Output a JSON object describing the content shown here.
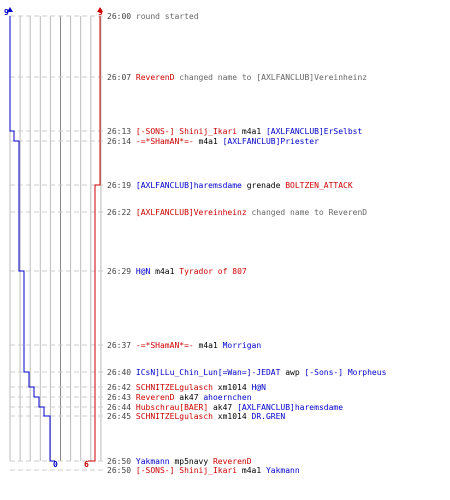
{
  "scores": {
    "blue_top": "9",
    "red_top": "9",
    "blue_bottom": "0",
    "red_bottom": "6"
  },
  "colors": {
    "blue_team": "#0000cc",
    "red_team": "#cc0000",
    "time": "#444444",
    "message": "#666666",
    "grid": "#bbbbbb"
  },
  "events": [
    {
      "time": "26:00",
      "parts": [
        {
          "t": "round started",
          "c": "g"
        }
      ]
    },
    {
      "time": "26:07",
      "parts": [
        {
          "t": "ReverenD",
          "c": "r"
        },
        {
          "t": " changed name to ",
          "c": "g"
        },
        {
          "t": "[AXLFANCLUB]Vereinheinz",
          "c": "g"
        }
      ]
    },
    {
      "time": "26:13",
      "parts": [
        {
          "t": "[-SONS-] Shinij_Ikari",
          "c": "r"
        },
        {
          "t": " m4a1 ",
          "c": "k"
        },
        {
          "t": "[AXLFANCLUB]ErSelbst",
          "c": "b"
        }
      ]
    },
    {
      "time": "26:14",
      "parts": [
        {
          "t": "-=*SHamAN*=-",
          "c": "r"
        },
        {
          "t": " m4a1 ",
          "c": "k"
        },
        {
          "t": "[AXLFANCLUB]Priester",
          "c": "b"
        }
      ]
    },
    {
      "time": "26:19",
      "parts": [
        {
          "t": "[AXLFANCLUB]haremsdame",
          "c": "b"
        },
        {
          "t": " grenade ",
          "c": "k"
        },
        {
          "t": "BOLTZEN_ATTACK",
          "c": "r"
        }
      ]
    },
    {
      "time": "26:22",
      "parts": [
        {
          "t": "[AXLFANCLUB]Vereinheinz",
          "c": "r"
        },
        {
          "t": " changed name to ReverenD",
          "c": "g"
        }
      ]
    },
    {
      "time": "26:29",
      "parts": [
        {
          "t": "H@N",
          "c": "b"
        },
        {
          "t": " m4a1 ",
          "c": "k"
        },
        {
          "t": "Tyrador of 807",
          "c": "r"
        }
      ]
    },
    {
      "time": "26:37",
      "parts": [
        {
          "t": "-=*SHamAN*=-",
          "c": "r"
        },
        {
          "t": " m4a1 ",
          "c": "k"
        },
        {
          "t": "Morrigan",
          "c": "b"
        }
      ]
    },
    {
      "time": "26:40",
      "parts": [
        {
          "t": "ICsN]LLu_Chin_Lun[=Wan=]-JEDAT",
          "c": "b"
        },
        {
          "t": " awp ",
          "c": "k"
        },
        {
          "t": "[-Sons-] Morpheus",
          "c": "b"
        }
      ]
    },
    {
      "time": "26:42",
      "parts": [
        {
          "t": "SCHNITZELgulasch",
          "c": "r"
        },
        {
          "t": " xm1014 ",
          "c": "k"
        },
        {
          "t": "H@N",
          "c": "b"
        }
      ]
    },
    {
      "time": "26:43",
      "parts": [
        {
          "t": "ReverenD",
          "c": "r"
        },
        {
          "t": " ak47 ",
          "c": "k"
        },
        {
          "t": "ahoernchen",
          "c": "b"
        }
      ]
    },
    {
      "time": "26:44",
      "parts": [
        {
          "t": "Hubschrau[BAER]",
          "c": "r"
        },
        {
          "t": " ak47 ",
          "c": "k"
        },
        {
          "t": "[AXLFANCLUB]haremsdame",
          "c": "b"
        }
      ]
    },
    {
      "time": "26:45",
      "parts": [
        {
          "t": "SCHNITZELgulasch",
          "c": "r"
        },
        {
          "t": " xm1014 ",
          "c": "k"
        },
        {
          "t": "DR.GREN",
          "c": "b"
        }
      ]
    },
    {
      "time": "26:50",
      "parts": [
        {
          "t": "Yakmann",
          "c": "b"
        },
        {
          "t": " mp5navy ",
          "c": "k"
        },
        {
          "t": "ReverenD",
          "c": "r"
        }
      ]
    },
    {
      "time": "26:50",
      "parts": [
        {
          "t": "[-SONS-] Shinij_Ikari",
          "c": "r"
        },
        {
          "t": " m4a1 ",
          "c": "k"
        },
        {
          "t": "Yakmann",
          "c": "b"
        }
      ]
    }
  ]
}
